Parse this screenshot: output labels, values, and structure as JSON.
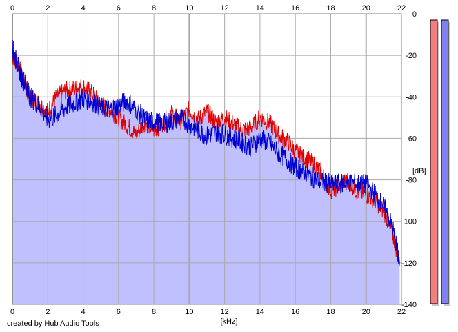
{
  "credit": "created by Hub Audio Tools",
  "colors": {
    "background": "#ffffff",
    "plot_fill": "#c0c0ff",
    "grid": "#a8a8a8",
    "left_channel": "#e00000",
    "right_channel": "#0000d0",
    "meter_left": "#f08080",
    "meter_right": "#8080f0"
  },
  "chart_data": {
    "type": "line",
    "xlabel": "[kHz]",
    "ylabel": "[dB]",
    "xlim": [
      0,
      22
    ],
    "ylim": [
      -140,
      0
    ],
    "x_ticks": [
      0,
      2,
      4,
      6,
      8,
      10,
      12,
      14,
      16,
      18,
      20,
      22
    ],
    "y_ticks": [
      0,
      -20,
      -40,
      -60,
      -80,
      -100,
      -120,
      -140
    ],
    "y_tick_labels": [
      "0",
      "-20",
      "-40",
      "-60",
      "-80",
      "-100",
      "-120",
      "-140"
    ],
    "x_tick_labels_top_and_bottom": true,
    "grid": true,
    "series": [
      {
        "color": "#e00000",
        "x": [
          0.0,
          0.2,
          0.5,
          0.8,
          1.0,
          1.5,
          2.0,
          2.5,
          3.0,
          3.5,
          4.0,
          4.5,
          5.0,
          5.5,
          6.0,
          6.5,
          7.0,
          7.5,
          8.0,
          8.5,
          9.0,
          9.5,
          10.0,
          10.5,
          11.0,
          11.5,
          12.0,
          12.5,
          13.0,
          13.5,
          14.0,
          14.5,
          15.0,
          15.5,
          16.0,
          16.5,
          17.0,
          17.5,
          18.0,
          18.5,
          19.0,
          19.5,
          20.0,
          20.5,
          21.0,
          21.5,
          21.9
        ],
        "values": [
          -20,
          -23,
          -28,
          -36,
          -40,
          -43,
          -47,
          -40,
          -37,
          -36,
          -35,
          -38,
          -44,
          -46,
          -50,
          -54,
          -58,
          -52,
          -56,
          -53,
          -48,
          -52,
          -46,
          -51,
          -47,
          -52,
          -50,
          -53,
          -56,
          -55,
          -50,
          -52,
          -58,
          -61,
          -66,
          -69,
          -72,
          -77,
          -85,
          -83,
          -80,
          -86,
          -87,
          -90,
          -95,
          -106,
          -120
        ]
      },
      {
        "color": "#0000d0",
        "x": [
          0.0,
          0.2,
          0.5,
          0.8,
          1.0,
          1.5,
          2.0,
          2.5,
          3.0,
          3.5,
          4.0,
          4.5,
          5.0,
          5.5,
          6.0,
          6.5,
          7.0,
          7.5,
          8.0,
          8.5,
          9.0,
          9.5,
          10.0,
          10.5,
          11.0,
          11.5,
          12.0,
          12.5,
          13.0,
          13.5,
          14.0,
          14.5,
          15.0,
          15.5,
          16.0,
          16.5,
          17.0,
          17.5,
          18.0,
          18.5,
          19.0,
          19.5,
          20.0,
          20.5,
          21.0,
          21.5,
          21.9
        ],
        "values": [
          -16,
          -22,
          -30,
          -35,
          -40,
          -44,
          -51,
          -49,
          -45,
          -43,
          -41,
          -42,
          -45,
          -46,
          -44,
          -42,
          -46,
          -51,
          -52,
          -53,
          -52,
          -50,
          -53,
          -56,
          -59,
          -57,
          -58,
          -60,
          -62,
          -64,
          -60,
          -62,
          -67,
          -70,
          -74,
          -76,
          -79,
          -81,
          -82,
          -82,
          -81,
          -82,
          -82,
          -87,
          -93,
          -103,
          -120
        ]
      }
    ],
    "level_meters": [
      {
        "color": "#f08080"
      },
      {
        "color": "#8080f0"
      }
    ]
  }
}
